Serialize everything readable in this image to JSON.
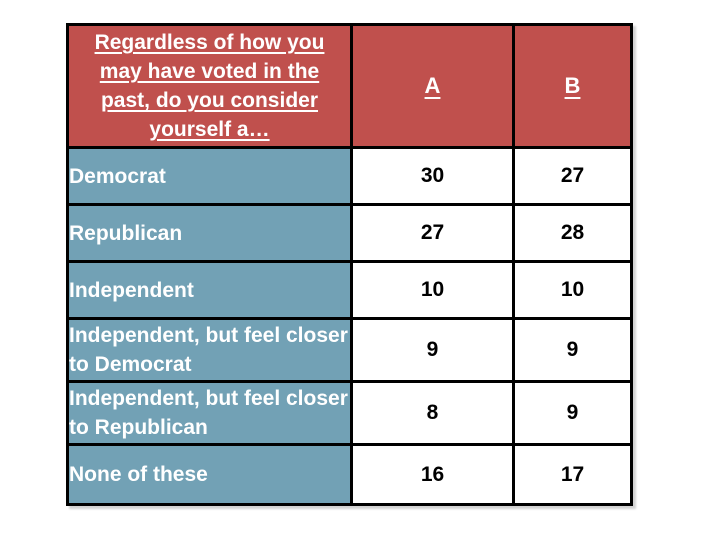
{
  "table": {
    "header": {
      "question_lines": [
        "Regardless of how you",
        "may have voted in the",
        "past, do you consider",
        "yourself a…"
      ],
      "columns": {
        "a": "A",
        "b": "B"
      }
    },
    "rows": [
      {
        "label": "Democrat",
        "a": 30,
        "b": 27
      },
      {
        "label": "Republican",
        "a": 27,
        "b": 28
      },
      {
        "label": "Independent",
        "a": 10,
        "b": 10
      },
      {
        "label": "Independent, but feel closer to Democrat",
        "a": 9,
        "b": 9
      },
      {
        "label": "Independent, but feel closer to Republican",
        "a": 8,
        "b": 9
      },
      {
        "label": "None of these",
        "a": 16,
        "b": 17
      }
    ],
    "colors": {
      "header_bg": "#c0504d",
      "label_bg": "#72a1b5",
      "value_bg": "#ffffff",
      "border": "#000000",
      "header_text": "#ffffff",
      "label_text": "#ffffff",
      "value_text": "#000000"
    }
  }
}
